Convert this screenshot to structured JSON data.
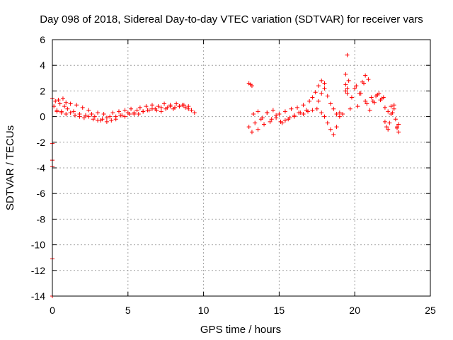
{
  "chart_data": {
    "type": "scatter",
    "title": "Day 098 of 2018, Sidereal Day-to-day VTEC variation (SDTVAR) for receiver vars",
    "xlabel": "GPS time / hours",
    "ylabel": "SDTVAR / TECUs",
    "xlim": [
      0,
      25
    ],
    "ylim": [
      -14,
      6
    ],
    "x_ticks": [
      0,
      5,
      10,
      15,
      20,
      25
    ],
    "y_ticks": [
      -14,
      -12,
      -10,
      -8,
      -6,
      -4,
      -2,
      0,
      2,
      4,
      6
    ],
    "x_tick_labels": [
      "0",
      "5",
      "10",
      "15",
      "20",
      "25"
    ],
    "y_tick_labels": [
      "-14",
      "-12",
      "-10",
      "-8",
      "-6",
      "-4",
      "-2",
      "0",
      "2",
      "4",
      "6"
    ],
    "grid": true,
    "marker": "+",
    "color": "#ff0000",
    "series": [
      {
        "name": "SDTVAR",
        "x": [
          0.0,
          0.0,
          0.0,
          0.0,
          0.0,
          0.0,
          0.1,
          0.2,
          0.3,
          0.4,
          0.5,
          0.6,
          0.7,
          0.8,
          0.9,
          1.0,
          1.2,
          1.4,
          1.6,
          1.8,
          2.0,
          2.2,
          2.4,
          2.6,
          2.8,
          3.0,
          3.2,
          3.4,
          3.6,
          3.8,
          4.0,
          4.2,
          4.4,
          4.6,
          4.8,
          5.0,
          5.2,
          5.4,
          5.6,
          5.8,
          6.0,
          6.2,
          6.4,
          6.6,
          6.8,
          7.0,
          7.2,
          7.4,
          7.6,
          7.8,
          8.0,
          8.2,
          8.4,
          8.6,
          8.8,
          9.0,
          9.2,
          9.4,
          0.3,
          0.6,
          0.9,
          1.2,
          1.5,
          1.8,
          2.1,
          2.4,
          2.7,
          3.0,
          3.3,
          3.6,
          3.9,
          4.2,
          4.5,
          4.8,
          5.1,
          5.4,
          5.7,
          6.0,
          6.3,
          6.6,
          6.9,
          7.2,
          7.5,
          7.8,
          8.1,
          8.4,
          8.7,
          9.0,
          13.0,
          13.1,
          13.2,
          13.0,
          13.2,
          13.4,
          13.6,
          13.8,
          14.0,
          14.2,
          14.4,
          14.6,
          14.8,
          15.0,
          15.2,
          15.4,
          15.6,
          15.8,
          16.0,
          16.2,
          16.4,
          16.6,
          16.8,
          17.0,
          17.2,
          17.4,
          17.6,
          17.8,
          18.0,
          13.3,
          13.6,
          13.9,
          14.2,
          14.5,
          14.8,
          15.1,
          15.4,
          15.7,
          16.0,
          16.3,
          16.6,
          16.9,
          17.2,
          17.5,
          17.8,
          18.0,
          18.2,
          18.4,
          18.6,
          18.8,
          19.0,
          17.6,
          17.8,
          18.0,
          18.2,
          18.4,
          18.6,
          18.8,
          19.0,
          19.2,
          19.4,
          19.4,
          19.5,
          19.6,
          19.5,
          19.4,
          19.5,
          19.7,
          19.8,
          20.0,
          20.2,
          20.4,
          20.6,
          20.7,
          20.8,
          21.0,
          21.2,
          21.4,
          21.6,
          21.8,
          20.1,
          20.3,
          20.5,
          20.7,
          20.9,
          21.1,
          21.3,
          21.5,
          21.7,
          21.9,
          22.0,
          22.1,
          22.2,
          22.3,
          22.4,
          22.5,
          22.6,
          22.7,
          22.8,
          22.9,
          22.0,
          22.2,
          22.4,
          22.6,
          22.8,
          22.9
        ],
        "y": [
          1.4,
          -2.1,
          -3.4,
          -3.9,
          -11.1,
          -14.0,
          0.8,
          1.2,
          0.5,
          1.3,
          1.0,
          0.4,
          1.4,
          0.8,
          1.1,
          0.6,
          1.0,
          0.4,
          0.9,
          0.2,
          0.7,
          0.1,
          0.5,
          0.2,
          0.0,
          0.3,
          -0.3,
          0.2,
          -0.4,
          0.0,
          0.3,
          -0.2,
          0.4,
          0.1,
          0.5,
          0.3,
          0.6,
          0.2,
          0.5,
          0.7,
          0.4,
          0.8,
          0.5,
          0.9,
          0.6,
          0.8,
          0.4,
          1.0,
          0.7,
          0.9,
          0.6,
          1.0,
          0.8,
          0.9,
          0.7,
          0.8,
          0.5,
          0.3,
          0.4,
          0.3,
          0.2,
          0.3,
          0.1,
          0.0,
          -0.1,
          0.0,
          -0.2,
          -0.3,
          -0.2,
          -0.1,
          -0.3,
          0.0,
          0.1,
          0.0,
          0.2,
          0.3,
          0.2,
          0.4,
          0.5,
          0.6,
          0.5,
          0.7,
          0.6,
          0.8,
          0.7,
          0.8,
          0.9,
          0.6,
          2.6,
          2.5,
          2.4,
          -0.8,
          -1.2,
          -0.5,
          -1.0,
          -0.2,
          -0.6,
          0.3,
          -0.4,
          0.5,
          -0.1,
          0.2,
          -0.5,
          0.4,
          -0.2,
          0.6,
          0.0,
          0.7,
          0.3,
          0.9,
          0.5,
          1.2,
          1.5,
          1.9,
          2.4,
          2.8,
          2.6,
          0.2,
          0.4,
          -0.1,
          0.3,
          -0.2,
          0.1,
          -0.4,
          -0.3,
          -0.1,
          0.1,
          0.3,
          0.2,
          0.4,
          0.5,
          0.6,
          0.3,
          0.0,
          -0.5,
          -1.0,
          -1.4,
          -0.8,
          0.0,
          1.2,
          1.8,
          2.2,
          1.6,
          1.0,
          0.6,
          0.2,
          0.3,
          0.2,
          2.5,
          3.3,
          2.2,
          2.8,
          4.8,
          2.0,
          1.8,
          0.6,
          1.5,
          2.2,
          0.8,
          1.8,
          2.6,
          3.2,
          1.0,
          0.5,
          1.2,
          1.6,
          1.8,
          1.4,
          2.4,
          1.8,
          2.7,
          1.2,
          2.9,
          1.5,
          1.1,
          1.7,
          1.3,
          1.5,
          -0.4,
          -0.8,
          -1.0,
          -0.5,
          0.8,
          0.3,
          0.6,
          -0.2,
          -0.9,
          -0.6,
          0.7,
          0.4,
          0.2,
          0.9,
          -0.8,
          -1.2
        ]
      }
    ]
  }
}
